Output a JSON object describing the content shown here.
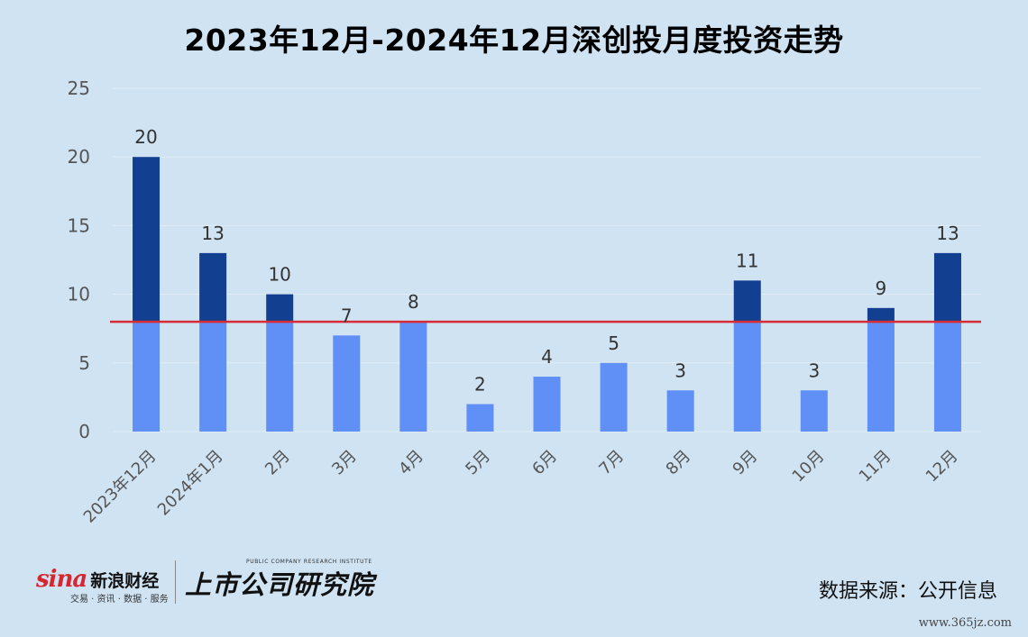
{
  "chart_data": {
    "type": "bar",
    "title": "2023年12月-2024年12月深创投月度投资走势",
    "categories": [
      "2023年12月",
      "2024年1月",
      "2月",
      "3月",
      "4月",
      "5月",
      "6月",
      "7月",
      "8月",
      "9月",
      "10月",
      "11月",
      "12月"
    ],
    "values": [
      20,
      13,
      10,
      7,
      8,
      2,
      4,
      5,
      3,
      11,
      3,
      9,
      13
    ],
    "yticks": [
      "0",
      "5",
      "10",
      "15",
      "20",
      "25"
    ],
    "ylim": [
      0,
      25
    ],
    "reference_line": 8,
    "grid": true,
    "legend": "none",
    "colors": {
      "below_line": "#6090f5",
      "above_line": "#123f8f",
      "reference_line": "#d62c35",
      "grid": "#e2ecf5",
      "background": "#cfe3f3"
    }
  },
  "footer": {
    "sina_word": "sina",
    "sina_cn": "新浪财经",
    "sina_sub": "交易 · 资讯 · 数据 · 服务",
    "pcri_en": "PUBLIC COMPANY RESEARCH INSTITUTE",
    "pcri_cn": "上市公司研究院",
    "source": "数据来源：公开信息",
    "watermark": "www.365jz.com"
  }
}
